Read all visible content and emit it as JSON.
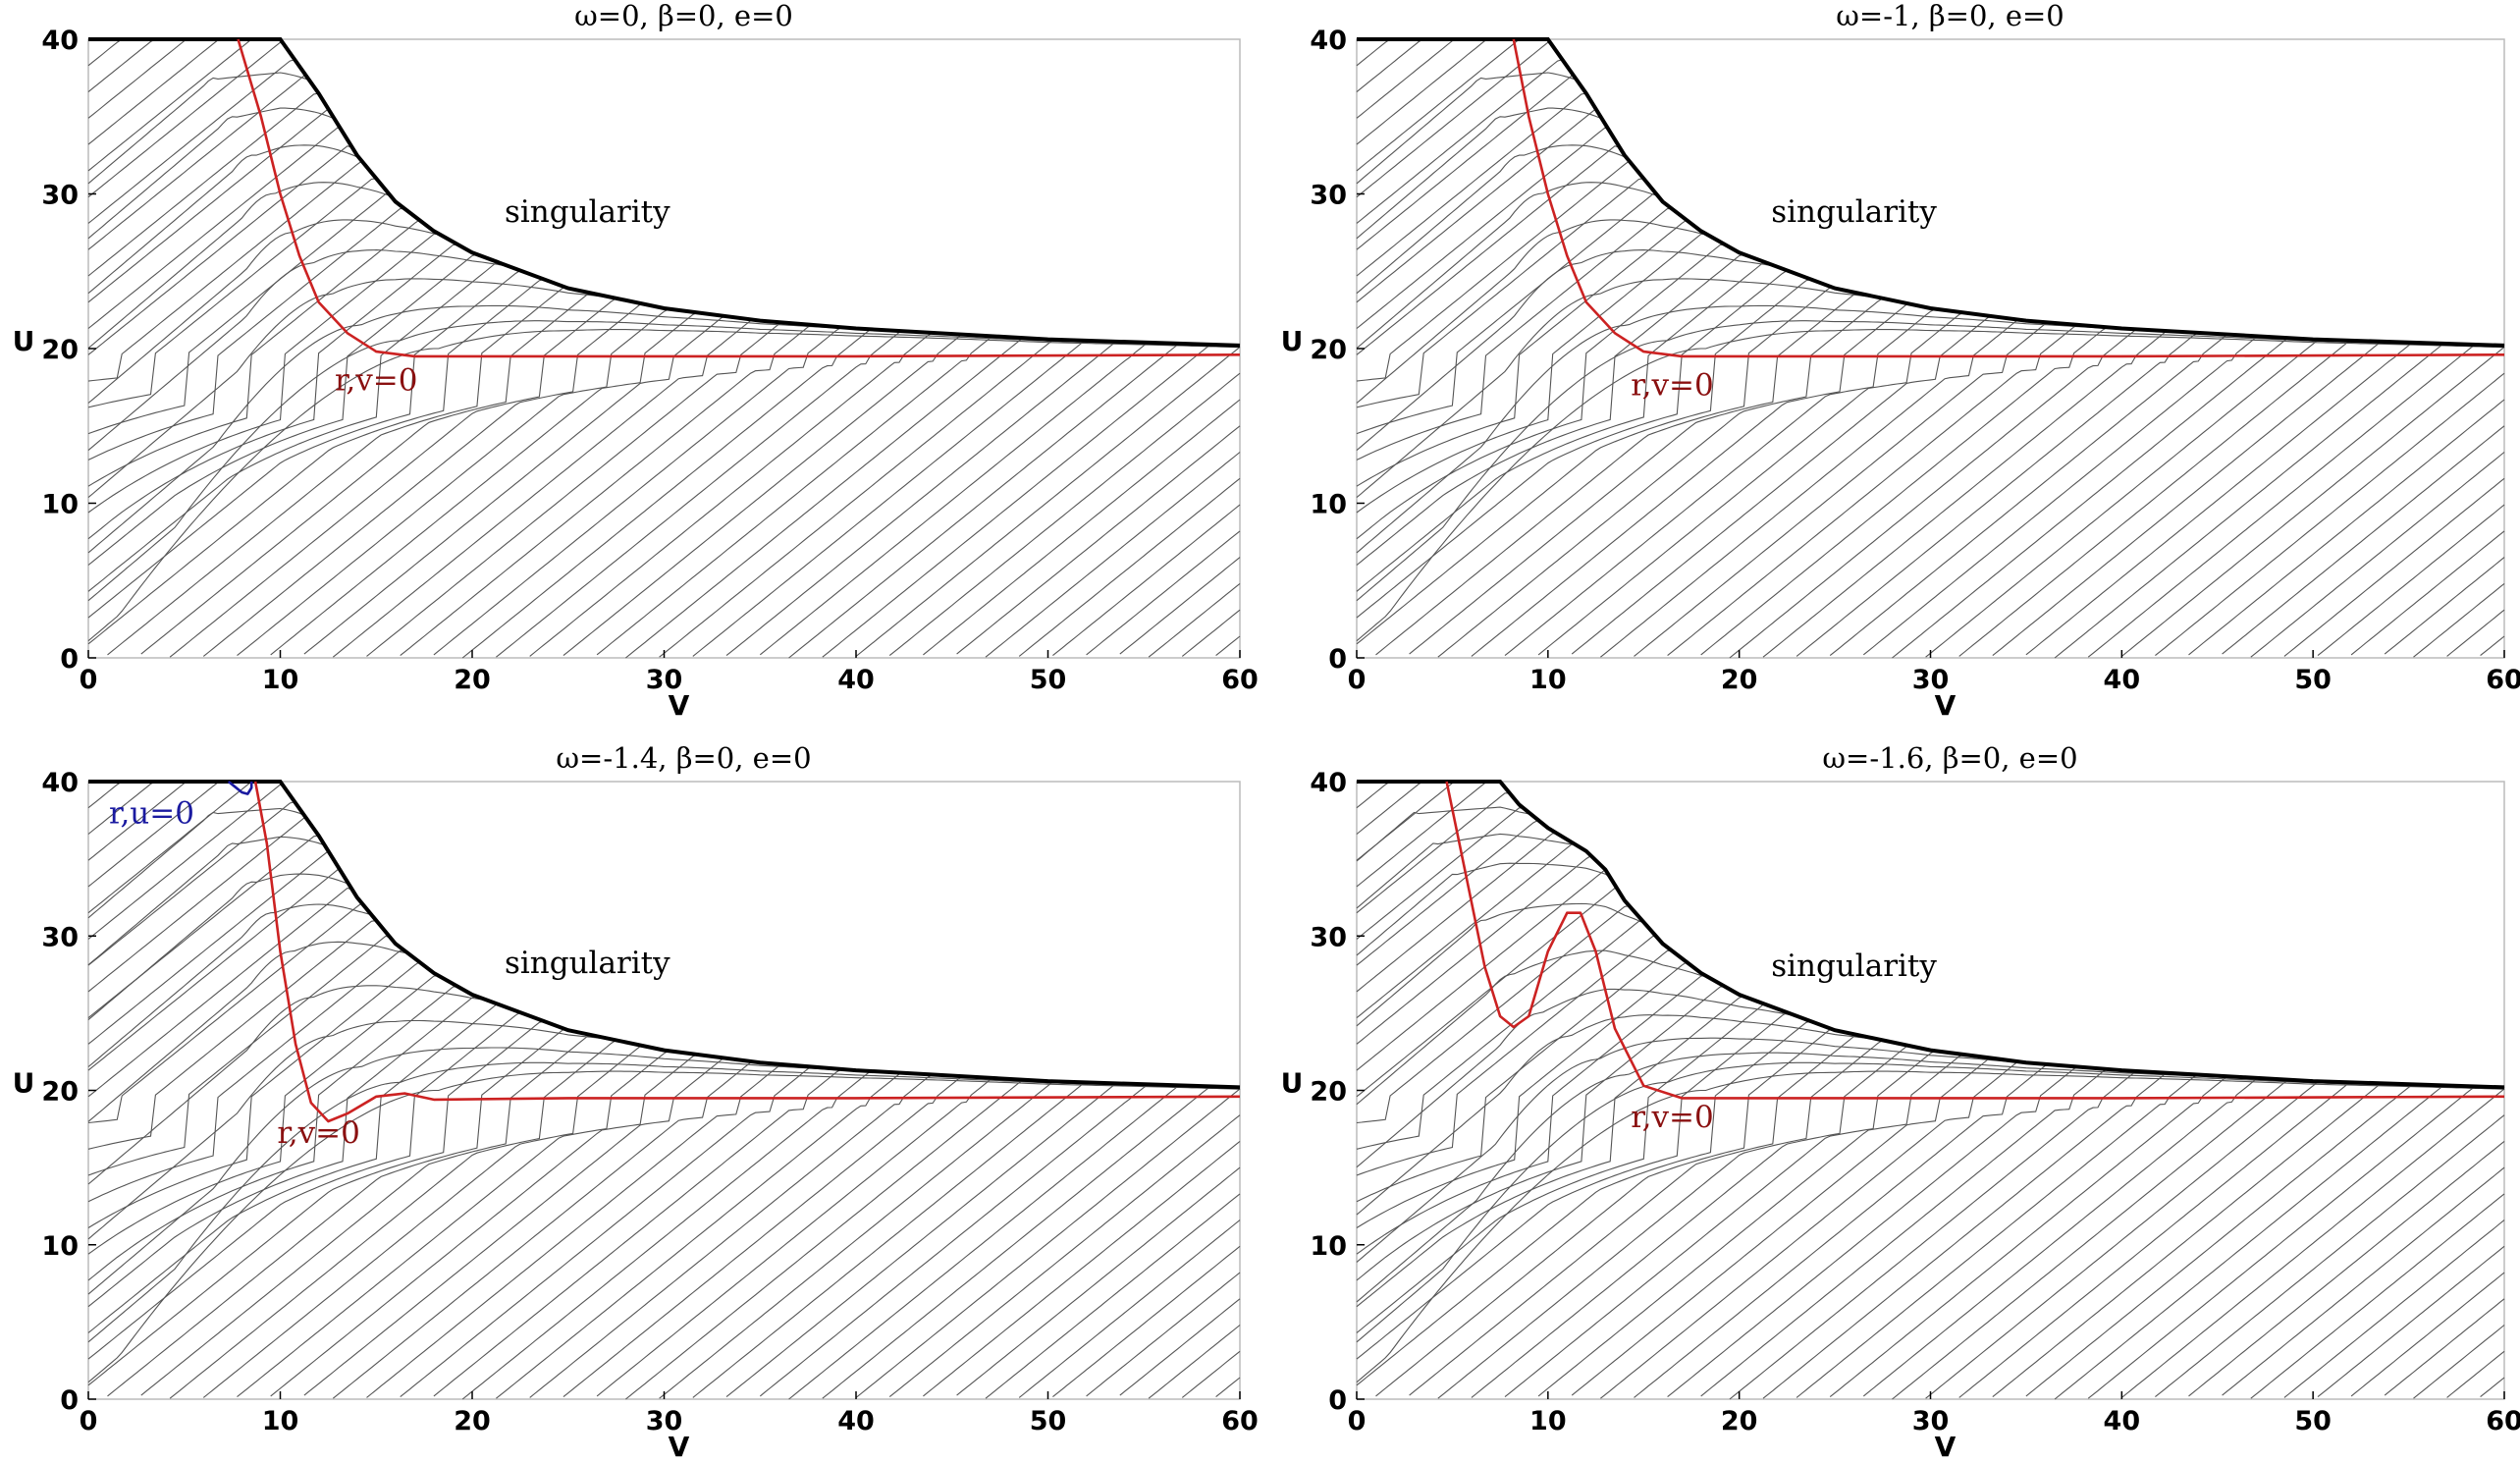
{
  "chart_data": [
    {
      "type": "line",
      "title": "ω=0,   β=0,   e=0",
      "xlabel": "V",
      "ylabel": "U",
      "xlim": [
        0,
        60
      ],
      "ylim": [
        0,
        40
      ],
      "xticks": [
        "0",
        "10",
        "20",
        "30",
        "40",
        "50",
        "60"
      ],
      "yticks": [
        "0",
        "10",
        "20",
        "30",
        "40"
      ],
      "grid": false,
      "colors": {
        "contour": "#555555",
        "boundary": "#000000",
        "rv": "#cc2222",
        "ru": "#1a1aa0"
      },
      "singularity": [
        [
          0,
          40
        ],
        [
          10,
          40
        ],
        [
          12,
          36.5
        ],
        [
          14,
          32.5
        ],
        [
          16,
          29.5
        ],
        [
          18,
          27.6
        ],
        [
          20,
          26.2
        ],
        [
          25,
          23.9
        ],
        [
          30,
          22.6
        ],
        [
          35,
          21.8
        ],
        [
          40,
          21.3
        ],
        [
          50,
          20.6
        ],
        [
          60,
          20.2
        ]
      ],
      "contour_peaks": [
        [
          6.5,
          37.5
        ],
        [
          7.5,
          35
        ],
        [
          8.5,
          32.5
        ],
        [
          9.5,
          30
        ],
        [
          10.5,
          27.5
        ],
        [
          11.5,
          25.5
        ],
        [
          12.5,
          23.5
        ],
        [
          14,
          21.5
        ],
        [
          16,
          20.5
        ],
        [
          18,
          20
        ]
      ],
      "series": [
        {
          "name": "r,v=0",
          "values": [
            [
              7.8,
              40
            ],
            [
              9,
              35
            ],
            [
              10,
              30
            ],
            [
              11,
              26
            ],
            [
              12,
              23
            ],
            [
              13.5,
              21
            ],
            [
              15,
              19.8
            ],
            [
              17,
              19.5
            ],
            [
              25,
              19.5
            ],
            [
              40,
              19.5
            ],
            [
              60,
              19.6
            ]
          ]
        }
      ],
      "annotations": [
        {
          "text": "singularity",
          "x": 26,
          "y": 28.2
        },
        {
          "text": "r,v=0",
          "x": 15,
          "y": 17.3
        }
      ]
    },
    {
      "type": "line",
      "title": "ω=-1,   β=0,   e=0",
      "xlabel": "V",
      "ylabel": "U",
      "xlim": [
        0,
        60
      ],
      "ylim": [
        0,
        40
      ],
      "xticks": [
        "0",
        "10",
        "20",
        "30",
        "40",
        "50",
        "60"
      ],
      "yticks": [
        "0",
        "10",
        "20",
        "30",
        "40"
      ],
      "grid": false,
      "colors": {
        "contour": "#555555",
        "boundary": "#000000",
        "rv": "#cc2222",
        "ru": "#1a1aa0"
      },
      "singularity": [
        [
          0,
          40
        ],
        [
          10,
          40
        ],
        [
          12,
          36.5
        ],
        [
          14,
          32.5
        ],
        [
          16,
          29.5
        ],
        [
          18,
          27.6
        ],
        [
          20,
          26.2
        ],
        [
          25,
          23.9
        ],
        [
          30,
          22.6
        ],
        [
          35,
          21.8
        ],
        [
          40,
          21.3
        ],
        [
          50,
          20.6
        ],
        [
          60,
          20.2
        ]
      ],
      "contour_peaks": [
        [
          6.5,
          37.5
        ],
        [
          7.5,
          35
        ],
        [
          8.5,
          32.5
        ],
        [
          9.5,
          30
        ],
        [
          10.5,
          27.5
        ],
        [
          11.5,
          25.5
        ],
        [
          12.5,
          23.5
        ],
        [
          14,
          21.5
        ],
        [
          16,
          20.5
        ],
        [
          18,
          20
        ]
      ],
      "series": [
        {
          "name": "r,v=0",
          "values": [
            [
              8.2,
              40
            ],
            [
              9,
              35
            ],
            [
              10,
              30
            ],
            [
              11,
              26
            ],
            [
              12,
              23
            ],
            [
              13.5,
              21
            ],
            [
              15,
              19.8
            ],
            [
              17,
              19.5
            ],
            [
              25,
              19.5
            ],
            [
              40,
              19.5
            ],
            [
              60,
              19.6
            ]
          ]
        }
      ],
      "annotations": [
        {
          "text": "singularity",
          "x": 26,
          "y": 28.2
        },
        {
          "text": "r,v=0",
          "x": 16.5,
          "y": 17.0
        }
      ]
    },
    {
      "type": "line",
      "title": "ω=-1.4,   β=0,   e=0",
      "xlabel": "V",
      "ylabel": "U",
      "xlim": [
        0,
        60
      ],
      "ylim": [
        0,
        40
      ],
      "xticks": [
        "0",
        "10",
        "20",
        "30",
        "40",
        "50",
        "60"
      ],
      "yticks": [
        "0",
        "10",
        "20",
        "30",
        "40"
      ],
      "grid": false,
      "colors": {
        "contour": "#555555",
        "boundary": "#000000",
        "rv": "#cc2222",
        "ru": "#1a1aa0"
      },
      "singularity": [
        [
          0,
          40
        ],
        [
          10,
          40
        ],
        [
          12,
          36.5
        ],
        [
          14,
          32.5
        ],
        [
          16,
          29.5
        ],
        [
          18,
          27.6
        ],
        [
          20,
          26.2
        ],
        [
          25,
          23.9
        ],
        [
          30,
          22.6
        ],
        [
          35,
          21.8
        ],
        [
          40,
          21.3
        ],
        [
          50,
          20.6
        ],
        [
          60,
          20.2
        ]
      ],
      "contour_peaks": [
        [
          6.5,
          38
        ],
        [
          7.5,
          36
        ],
        [
          8.5,
          33.5
        ],
        [
          9.5,
          31.5
        ],
        [
          10.5,
          29
        ],
        [
          11.5,
          26
        ],
        [
          12.5,
          23.5
        ],
        [
          14,
          21.5
        ],
        [
          16,
          20.5
        ],
        [
          18,
          20
        ]
      ],
      "series": [
        {
          "name": "r,v=0",
          "values": [
            [
              8.7,
              40
            ],
            [
              9.3,
              36
            ],
            [
              10,
              29
            ],
            [
              10.8,
              23
            ],
            [
              11.6,
              19.2
            ],
            [
              12.5,
              18
            ],
            [
              13.5,
              18.5
            ],
            [
              15,
              19.6
            ],
            [
              16.5,
              19.8
            ],
            [
              18,
              19.4
            ],
            [
              25,
              19.5
            ],
            [
              40,
              19.5
            ],
            [
              60,
              19.6
            ]
          ]
        },
        {
          "name": "r,u=0",
          "values": [
            [
              7.3,
              40
            ],
            [
              7.6,
              39.7
            ],
            [
              8.0,
              39.3
            ],
            [
              8.3,
              39.2
            ],
            [
              8.5,
              39.6
            ],
            [
              8.5,
              40
            ]
          ]
        }
      ],
      "annotations": [
        {
          "text": "singularity",
          "x": 26,
          "y": 27.6
        },
        {
          "text": "r,v=0",
          "x": 12,
          "y": 16.6
        },
        {
          "text": "r,u=0",
          "x": 3.3,
          "y": 37.3
        }
      ]
    },
    {
      "type": "line",
      "title": "ω=-1.6,   β=0,   e=0",
      "xlabel": "V",
      "ylabel": "U",
      "xlim": [
        0,
        60
      ],
      "ylim": [
        0,
        40
      ],
      "xticks": [
        "0",
        "10",
        "20",
        "30",
        "40",
        "50",
        "60"
      ],
      "yticks": [
        "0",
        "10",
        "20",
        "30",
        "40"
      ],
      "grid": false,
      "colors": {
        "contour": "#555555",
        "boundary": "#000000",
        "rv": "#cc2222",
        "ru": "#1a1aa0"
      },
      "singularity": [
        [
          0,
          40
        ],
        [
          7.5,
          40
        ],
        [
          8.5,
          38.5
        ],
        [
          10,
          37
        ],
        [
          12,
          35.5
        ],
        [
          13,
          34.3
        ],
        [
          14,
          32.3
        ],
        [
          16,
          29.5
        ],
        [
          18,
          27.6
        ],
        [
          20,
          26.2
        ],
        [
          25,
          23.9
        ],
        [
          30,
          22.6
        ],
        [
          35,
          21.8
        ],
        [
          40,
          21.3
        ],
        [
          50,
          20.6
        ],
        [
          60,
          20.2
        ]
      ],
      "contour_peaks": [
        [
          3,
          38
        ],
        [
          4,
          36
        ],
        [
          5,
          34
        ],
        [
          6.5,
          31
        ],
        [
          8,
          27.5
        ],
        [
          9.5,
          25
        ],
        [
          11,
          23.5
        ],
        [
          12.5,
          22
        ],
        [
          14,
          21
        ],
        [
          16,
          20.5
        ],
        [
          18,
          20
        ]
      ],
      "series": [
        {
          "name": "r,v=0",
          "values": [
            [
              4.7,
              40
            ],
            [
              5.7,
              34
            ],
            [
              6.7,
              28
            ],
            [
              7.5,
              24.8
            ],
            [
              8.2,
              24.1
            ],
            [
              9,
              24.8
            ],
            [
              10,
              29
            ],
            [
              11,
              31.5
            ],
            [
              11.7,
              31.5
            ],
            [
              12.5,
              29
            ],
            [
              13.5,
              24
            ],
            [
              15,
              20.3
            ],
            [
              17,
              19.5
            ],
            [
              25,
              19.5
            ],
            [
              40,
              19.5
            ],
            [
              60,
              19.6
            ]
          ]
        }
      ],
      "annotations": [
        {
          "text": "singularity",
          "x": 26,
          "y": 27.4
        },
        {
          "text": "r,v=0",
          "x": 16.5,
          "y": 17.6
        }
      ]
    }
  ]
}
